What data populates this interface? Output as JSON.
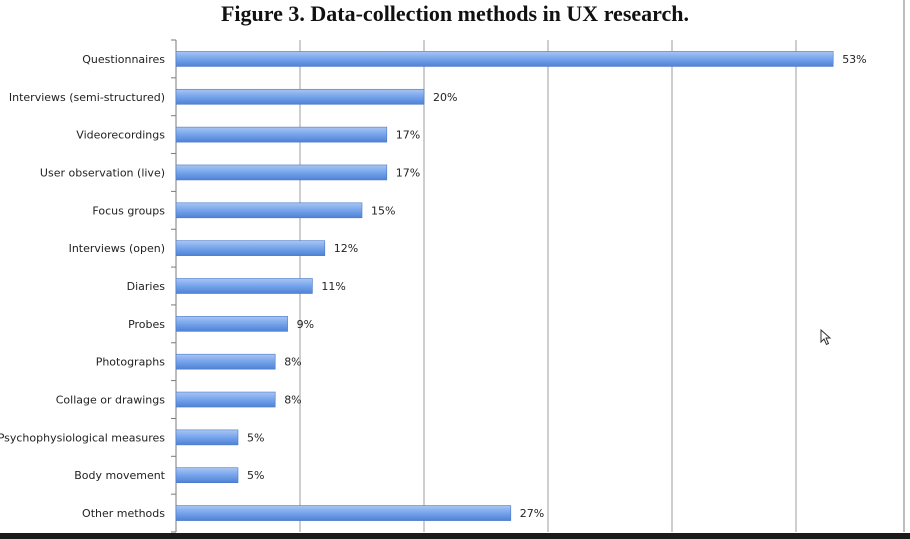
{
  "chart_data": {
    "type": "bar",
    "orientation": "horizontal",
    "title": "Figure 3. Data-collection methods in UX research.",
    "xlabel": "",
    "ylabel": "",
    "xlim": [
      0,
      60
    ],
    "grid": true,
    "categories": [
      "Questionnaires",
      "Interviews (semi-structured)",
      "Videorecordings",
      "User observation (live)",
      "Focus groups",
      "Interviews (open)",
      "Diaries",
      "Probes",
      "Photographs",
      "Collage or drawings",
      "Psychophysiological measures",
      "Body movement",
      "Other methods"
    ],
    "values": [
      53,
      20,
      17,
      17,
      15,
      12,
      11,
      9,
      8,
      8,
      5,
      5,
      27
    ],
    "value_labels": [
      "53%",
      "20%",
      "17%",
      "17%",
      "15%",
      "12%",
      "11%",
      "9%",
      "8%",
      "8%",
      "5%",
      "5%",
      "27%"
    ],
    "bar_color": "#6d9ce6"
  }
}
